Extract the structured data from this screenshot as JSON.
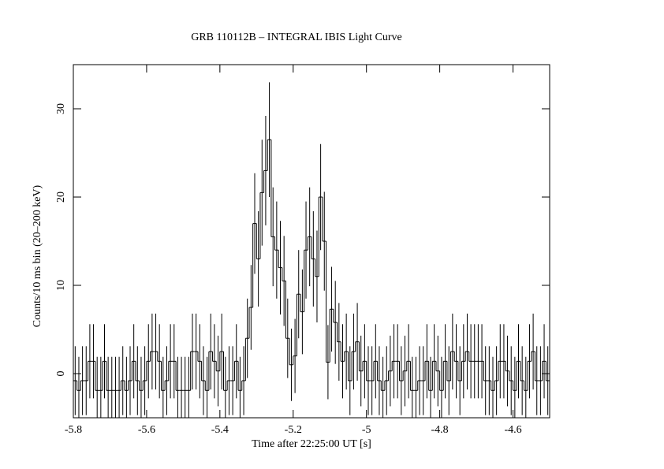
{
  "chart_data": {
    "type": "histogram",
    "title": "GRB 110112B – INTEGRAL IBIS Light Curve",
    "xlabel": "Time after 22:25:00 UT [s]",
    "ylabel": "Counts/10  ms bin (20–200 keV)",
    "xlim": [
      -5.8,
      -4.5
    ],
    "ylim": [
      -5,
      35
    ],
    "xticks": [
      -5.8,
      -5.6,
      -5.4,
      -5.2,
      -5,
      -4.8,
      -4.6
    ],
    "yticks": [
      0,
      10,
      20,
      30
    ],
    "color": "#000000",
    "values": [
      -0.8,
      -1.9,
      -0.8,
      -0.8,
      1.4,
      1.4,
      -1.9,
      -1.9,
      1.4,
      -1.9,
      -1.9,
      -1.9,
      -1.9,
      -0.8,
      -1.9,
      -0.8,
      1.4,
      -0.8,
      -1.9,
      -0.8,
      1.4,
      2.5,
      2.5,
      1.4,
      -1.9,
      -0.8,
      1.4,
      1.4,
      -1.9,
      -1.9,
      -1.9,
      -1.9,
      2.5,
      2.5,
      1.4,
      -0.8,
      -1.9,
      2.5,
      1.4,
      0.3,
      2.5,
      -1.9,
      -0.8,
      -0.8,
      1.4,
      -1.9,
      -0.8,
      4,
      7.5,
      17,
      13,
      20.5,
      23,
      26.5,
      15.5,
      14,
      12,
      10.5,
      4,
      1,
      2,
      9,
      7,
      14,
      15.5,
      13,
      11,
      20,
      15,
      1.3,
      7.3,
      5.8,
      3.6,
      1.4,
      2.5,
      -0.8,
      2.5,
      3.6,
      0.3,
      1.4,
      -0.8,
      -0.8,
      1.4,
      -0.8,
      -1.9,
      -0.8,
      0.3,
      1.4,
      1.4,
      -0.8,
      0.3,
      1.4,
      -1.9,
      -1.9,
      -0.8,
      -0.8,
      1.4,
      -1.9,
      1.4,
      0.3,
      -1.9,
      1.4,
      -0.8,
      2.5,
      1.4,
      -0.8,
      1.4,
      2.5,
      1.4,
      1.4,
      1.4,
      1.4,
      -0.8,
      -0.8,
      -1.9,
      -0.8,
      1.4,
      1.4,
      0.3,
      -0.8,
      -1.9,
      1.4,
      -0.8,
      -1.9,
      1.4,
      2.5,
      -0.8,
      -0.8,
      1.4,
      -0.8
    ],
    "errors": [
      3.9,
      3.8,
      3.9,
      3.9,
      4.2,
      4.2,
      3.8,
      3.8,
      4.2,
      3.8,
      3.8,
      3.8,
      3.8,
      3.9,
      3.8,
      3.9,
      4.2,
      3.9,
      3.8,
      3.9,
      4.2,
      4.3,
      4.3,
      4.2,
      3.8,
      3.9,
      4.2,
      4.2,
      3.8,
      3.8,
      3.8,
      3.8,
      4.3,
      4.3,
      4.2,
      3.9,
      3.8,
      4.3,
      4.2,
      4.0,
      4.3,
      3.8,
      3.9,
      3.9,
      4.2,
      3.8,
      3.9,
      4.5,
      4.8,
      5.7,
      5.4,
      6.0,
      6.2,
      6.5,
      5.6,
      5.5,
      5.3,
      5.1,
      4.5,
      4.1,
      4.2,
      5.0,
      4.8,
      5.5,
      5.6,
      5.4,
      5.2,
      6.0,
      5.6,
      4.2,
      4.8,
      4.7,
      4.4,
      4.2,
      4.3,
      3.9,
      4.3,
      4.4,
      4.0,
      4.2,
      3.9,
      3.9,
      4.2,
      3.9,
      3.8,
      3.9,
      4.0,
      4.2,
      4.2,
      3.9,
      4.0,
      4.2,
      3.8,
      3.8,
      3.9,
      3.9,
      4.2,
      3.8,
      4.2,
      4.0,
      3.8,
      4.2,
      3.9,
      4.3,
      4.2,
      3.9,
      4.2,
      4.3,
      4.2,
      4.2,
      4.2,
      4.2,
      3.9,
      3.9,
      3.8,
      3.9,
      4.2,
      4.2,
      4.0,
      3.9,
      3.8,
      4.2,
      3.9,
      3.8,
      4.2,
      4.3,
      3.9,
      3.9,
      4.2,
      3.9
    ]
  }
}
